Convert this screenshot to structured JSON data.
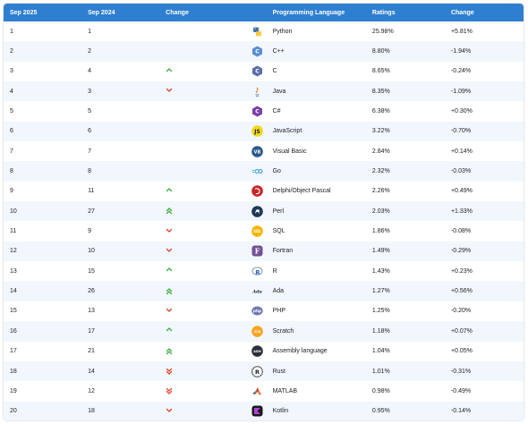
{
  "header": {
    "col_sep2025": "Sep 2025",
    "col_sep2024": "Sep 2024",
    "col_change": "Change",
    "col_language": "Programming Language",
    "col_ratings": "Ratings",
    "col_change2": "Change"
  },
  "colors": {
    "header_bg": "#2f7fd1",
    "up": "#3fae3f",
    "down": "#e0452a"
  },
  "rows": [
    {
      "rank2025": "1",
      "rank2024": "1",
      "trend": "none",
      "icon": "python-logo-icon",
      "language": "Python",
      "rating": "25.98%",
      "change": "+5.81%"
    },
    {
      "rank2025": "2",
      "rank2024": "2",
      "trend": "none",
      "icon": "cpp-logo-icon",
      "language": "C++",
      "rating": "8.80%",
      "change": "-1.94%"
    },
    {
      "rank2025": "3",
      "rank2024": "4",
      "trend": "up",
      "icon": "c-logo-icon",
      "language": "C",
      "rating": "8.65%",
      "change": "-0.24%"
    },
    {
      "rank2025": "4",
      "rank2024": "3",
      "trend": "down",
      "icon": "java-logo-icon",
      "language": "Java",
      "rating": "8.35%",
      "change": "-1.09%"
    },
    {
      "rank2025": "5",
      "rank2024": "5",
      "trend": "none",
      "icon": "csharp-logo-icon",
      "language": "C#",
      "rating": "6.38%",
      "change": "+0.30%"
    },
    {
      "rank2025": "6",
      "rank2024": "6",
      "trend": "none",
      "icon": "javascript-logo-icon",
      "language": "JavaScript",
      "rating": "3.22%",
      "change": "-0.70%"
    },
    {
      "rank2025": "7",
      "rank2024": "7",
      "trend": "none",
      "icon": "visual-basic-logo-icon",
      "language": "Visual Basic",
      "rating": "2.84%",
      "change": "+0.14%"
    },
    {
      "rank2025": "8",
      "rank2024": "8",
      "trend": "none",
      "icon": "go-logo-icon",
      "language": "Go",
      "rating": "2.32%",
      "change": "-0.03%"
    },
    {
      "rank2025": "9",
      "rank2024": "11",
      "trend": "up",
      "icon": "delphi-logo-icon",
      "language": "Delphi/Object Pascal",
      "rating": "2.26%",
      "change": "+0.49%"
    },
    {
      "rank2025": "10",
      "rank2024": "27",
      "trend": "up2",
      "icon": "perl-logo-icon",
      "language": "Perl",
      "rating": "2.03%",
      "change": "+1.33%"
    },
    {
      "rank2025": "11",
      "rank2024": "9",
      "trend": "down",
      "icon": "sql-logo-icon",
      "language": "SQL",
      "rating": "1.86%",
      "change": "-0.08%"
    },
    {
      "rank2025": "12",
      "rank2024": "10",
      "trend": "down",
      "icon": "fortran-logo-icon",
      "language": "Fortran",
      "rating": "1.49%",
      "change": "-0.29%"
    },
    {
      "rank2025": "13",
      "rank2024": "15",
      "trend": "up",
      "icon": "r-logo-icon",
      "language": "R",
      "rating": "1.43%",
      "change": "+0.23%"
    },
    {
      "rank2025": "14",
      "rank2024": "26",
      "trend": "up2",
      "icon": "ada-logo-icon",
      "language": "Ada",
      "rating": "1.27%",
      "change": "+0.56%"
    },
    {
      "rank2025": "15",
      "rank2024": "13",
      "trend": "down",
      "icon": "php-logo-icon",
      "language": "PHP",
      "rating": "1.25%",
      "change": "-0.20%"
    },
    {
      "rank2025": "16",
      "rank2024": "17",
      "trend": "up",
      "icon": "scratch-logo-icon",
      "language": "Scratch",
      "rating": "1.18%",
      "change": "+0.07%"
    },
    {
      "rank2025": "17",
      "rank2024": "21",
      "trend": "up2",
      "icon": "assembly-logo-icon",
      "language": "Assembly language",
      "rating": "1.04%",
      "change": "+0.05%"
    },
    {
      "rank2025": "18",
      "rank2024": "14",
      "trend": "down2",
      "icon": "rust-logo-icon",
      "language": "Rust",
      "rating": "1.01%",
      "change": "-0.31%"
    },
    {
      "rank2025": "19",
      "rank2024": "12",
      "trend": "down2",
      "icon": "matlab-logo-icon",
      "language": "MATLAB",
      "rating": "0.98%",
      "change": "-0.49%"
    },
    {
      "rank2025": "20",
      "rank2024": "18",
      "trend": "down",
      "icon": "kotlin-logo-icon",
      "language": "Kotlin",
      "rating": "0.95%",
      "change": "-0.14%"
    }
  ]
}
